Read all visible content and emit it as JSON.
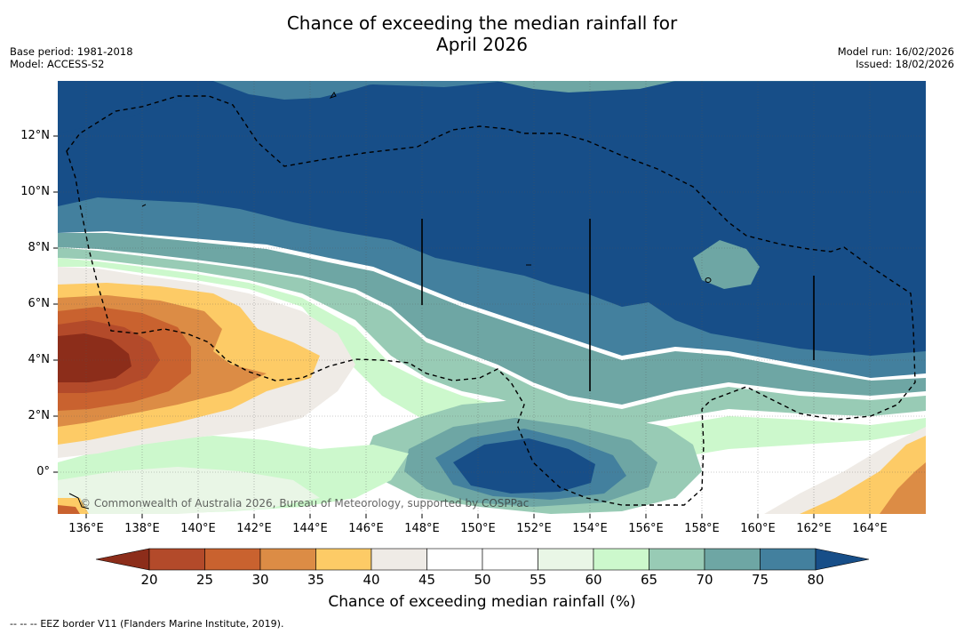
{
  "title": {
    "line1": "Chance of exceeding the median rainfall for",
    "line2": "April 2026"
  },
  "meta_left": {
    "base_period": "Base period: 1981-2018",
    "model": "Model: ACCESS-S2"
  },
  "meta_right": {
    "model_run": "Model run: 16/02/2026",
    "issued": "Issued: 18/02/2026"
  },
  "map": {
    "lat_labels": [
      "12°N",
      "10°N",
      "8°N",
      "6°N",
      "4°N",
      "2°N",
      "0°"
    ],
    "lon_labels": [
      "136°E",
      "138°E",
      "140°E",
      "142°E",
      "144°E",
      "146°E",
      "148°E",
      "150°E",
      "152°E",
      "154°E",
      "156°E",
      "158°E",
      "160°E",
      "162°E",
      "164°E"
    ],
    "copyright": "© Commonwealth of Australia 2026, Bureau of Meteorology, supported by COSPPac"
  },
  "colorbar": {
    "ticks": [
      "20",
      "25",
      "30",
      "35",
      "40",
      "45",
      "50",
      "55",
      "60",
      "65",
      "70",
      "75",
      "80"
    ],
    "colors": [
      "#8c2d1a",
      "#b34a2a",
      "#c9622f",
      "#dc8c45",
      "#fdcb66",
      "#efebe6",
      "#ffffff",
      "#ffffff",
      "#e9f6e6",
      "#ccf8cc",
      "#98cbb5",
      "#6ea6a4",
      "#43809e",
      "#174e88"
    ],
    "label": "Chance of exceeding median rainfall (%)"
  },
  "footer": {
    "dash": "-- -- --",
    "text": "EEZ border V11 (Flanders Marine Institute, 2019)."
  }
}
